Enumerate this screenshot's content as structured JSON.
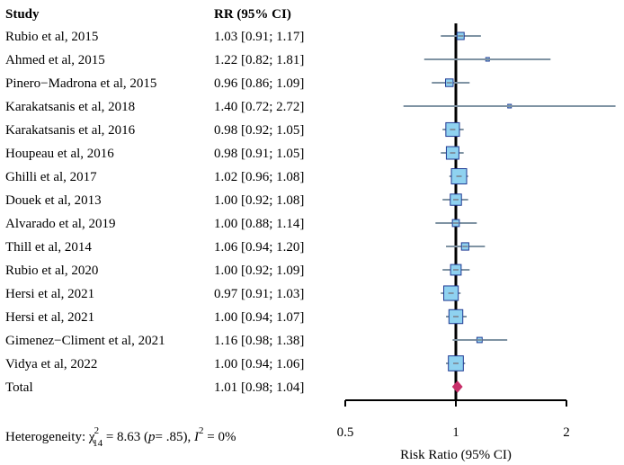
{
  "chart_data": {
    "type": "forest",
    "headers": {
      "study": "Study",
      "rr": "RR (95% CI)"
    },
    "studies": [
      {
        "name": "Rubio et al, 2015",
        "ci_text": "1.03 [0.91; 1.17]",
        "rr": 1.03,
        "lower": 0.91,
        "upper": 1.17
      },
      {
        "name": "Ahmed  et al, 2015",
        "ci_text": "1.22 [0.82; 1.81]",
        "rr": 1.22,
        "lower": 0.82,
        "upper": 1.81
      },
      {
        "name": "Pinero−Madrona  et al, 2015",
        "ci_text": "0.96 [0.86; 1.09]",
        "rr": 0.96,
        "lower": 0.86,
        "upper": 1.09
      },
      {
        "name": "Karakatsanis  et al, 2018",
        "ci_text": "1.40 [0.72; 2.72]",
        "rr": 1.4,
        "lower": 0.72,
        "upper": 2.72
      },
      {
        "name": "Karakatsanis  et al, 2016",
        "ci_text": "0.98 [0.92; 1.05]",
        "rr": 0.98,
        "lower": 0.92,
        "upper": 1.05
      },
      {
        "name": "Houpeau  et al, 2016",
        "ci_text": "0.98 [0.91; 1.05]",
        "rr": 0.98,
        "lower": 0.91,
        "upper": 1.05
      },
      {
        "name": "Ghilli  et al, 2017",
        "ci_text": "1.02 [0.96; 1.08]",
        "rr": 1.02,
        "lower": 0.96,
        "upper": 1.08
      },
      {
        "name": "Douek  et al, 2013",
        "ci_text": "1.00 [0.92; 1.08]",
        "rr": 1.0,
        "lower": 0.92,
        "upper": 1.08
      },
      {
        "name": "Alvarado  et al, 2019",
        "ci_text": "1.00 [0.88; 1.14]",
        "rr": 1.0,
        "lower": 0.88,
        "upper": 1.14
      },
      {
        "name": "Thill  et al, 2014",
        "ci_text": "1.06 [0.94; 1.20]",
        "rr": 1.06,
        "lower": 0.94,
        "upper": 1.2
      },
      {
        "name": "Rubio  et al, 2020",
        "ci_text": "1.00 [0.92; 1.09]",
        "rr": 1.0,
        "lower": 0.92,
        "upper": 1.09
      },
      {
        "name": "Hersi  et al, 2021",
        "ci_text": "0.97 [0.91; 1.03]",
        "rr": 0.97,
        "lower": 0.91,
        "upper": 1.03
      },
      {
        "name": "Hersi  et al, 2021",
        "ci_text": "1.00 [0.94; 1.07]",
        "rr": 1.0,
        "lower": 0.94,
        "upper": 1.07
      },
      {
        "name": "Gimenez−Climent et al, 2021",
        "ci_text": "1.16 [0.98; 1.38]",
        "rr": 1.16,
        "lower": 0.98,
        "upper": 1.38
      },
      {
        "name": "Vidya et al, 2022",
        "ci_text": "1.00 [0.94; 1.06]",
        "rr": 1.0,
        "lower": 0.94,
        "upper": 1.06
      }
    ],
    "total": {
      "name": "Total",
      "ci_text": "1.01 [0.98; 1.04]",
      "rr": 1.01,
      "lower": 0.98,
      "upper": 1.04
    },
    "heterogeneity": {
      "prefix": "Heterogeneity: ",
      "chi": "χ",
      "chi_sup": "2",
      "chi_sub": "14",
      "chi_value": " = 8.63 (",
      "p_symbol": "p",
      "p_value": "= .85), ",
      "i_symbol": "I",
      "i_sup": "2",
      "i_value": " = 0%"
    },
    "xaxis": {
      "scale": "log",
      "ticks": [
        0.5,
        1,
        2
      ],
      "tick_labels": [
        "0.5",
        "1",
        "2"
      ],
      "label": "Risk Ratio (95% CI)",
      "xlim": [
        0.5,
        2
      ],
      "reference": 1
    },
    "colors": {
      "box_fill": "#8fd2f0",
      "box_stroke": "#1f3a93",
      "ci_line": "#7f93a3",
      "diamond": "#c8306a",
      "axis": "#000000"
    }
  }
}
